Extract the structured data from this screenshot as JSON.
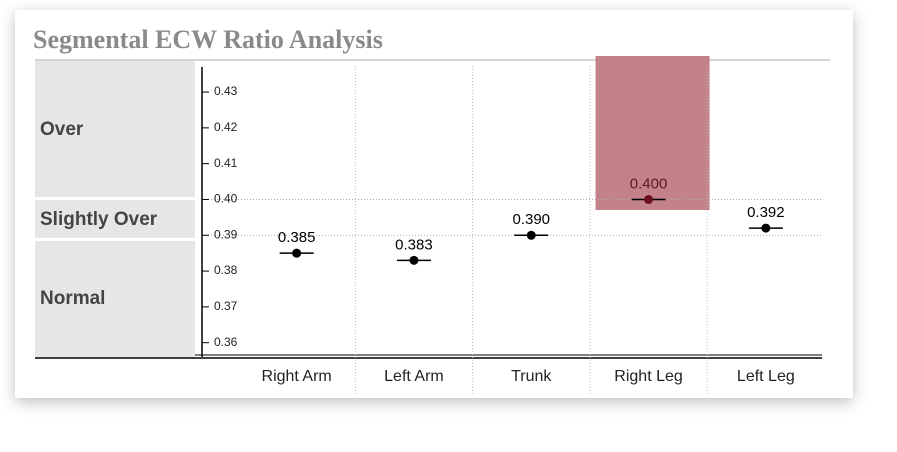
{
  "chart_data": {
    "type": "dot",
    "title": "Segmental ECW Ratio Analysis",
    "bands": [
      "Over",
      "Slightly Over",
      "Normal"
    ],
    "categories": [
      "Right Arm",
      "Left Arm",
      "Trunk",
      "Right Leg",
      "Left Leg"
    ],
    "values": [
      0.385,
      0.383,
      0.39,
      0.4,
      0.392
    ],
    "value_labels": [
      "0.385",
      "0.383",
      "0.390",
      "0.400",
      "0.392"
    ],
    "highlight": [
      false,
      false,
      false,
      true,
      false
    ],
    "color": "#000000",
    "highlight_color": "#c3818a",
    "ylim": [
      0.356,
      0.437
    ],
    "yticks": [
      0.36,
      0.37,
      0.38,
      0.39,
      {
        "value": 0.4,
        "label": "0.40"
      },
      0.41,
      0.42,
      0.43
    ],
    "grid_values": [
      0.39,
      0.4
    ]
  }
}
